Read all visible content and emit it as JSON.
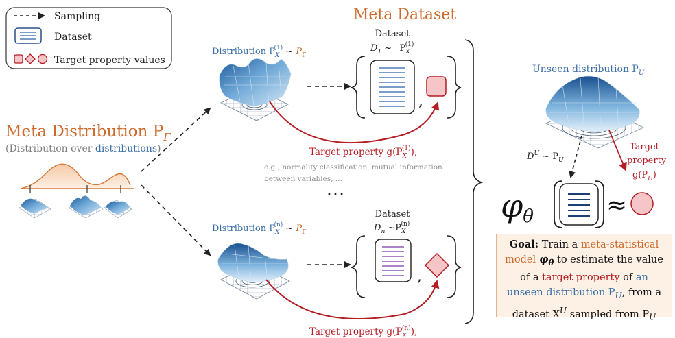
{
  "legend": {
    "sampling": "Sampling",
    "dataset": "Dataset",
    "target": "Target property values"
  },
  "meta_dataset_title": "Meta Dataset",
  "meta_distribution": {
    "title": "Meta Distribution P",
    "title_sub": "Γ",
    "caption_pre": "(Distribution over ",
    "caption_link": "distributions",
    "caption_post": ")"
  },
  "top": {
    "distribution_label": "Distribution P",
    "dist_sub": "X",
    "dist_sup": "(1)",
    "tilde": " ~ ",
    "prior": "P",
    "prior_sub": "Γ",
    "dataset_label": "Dataset",
    "d_label": "D",
    "d_sub": "1",
    "target_prefix": "Target property g(P",
    "target_sup": "(1)",
    "target_suffix": "),",
    "example_line1": "e.g., normality classification, mutual information",
    "example_line2": "between variables, ..."
  },
  "ellipsis": "• • •",
  "bottom": {
    "distribution_label": "Distribution P",
    "dist_sub": "X",
    "dist_sup": "(n)",
    "dataset_label": "Dataset",
    "d_label": "D",
    "d_sub": "n",
    "target_prefix": "Target property g(P",
    "target_sup": "(n)",
    "target_suffix": "),"
  },
  "unseen": {
    "label": "Unseen distribution P",
    "label_sub": "U",
    "du_label": "D",
    "du_sup": "U",
    "du_tilde": " ~ P",
    "du_sub": "U",
    "target_line1": "Target",
    "target_line2": "property",
    "target_line3": "g(P",
    "target_line3_sub": "U",
    "target_line3_end": ")"
  },
  "model": {
    "phi": "φ",
    "phi_sub": "θ",
    "approx": "≈"
  },
  "goal": {
    "bold": "Goal:",
    "t1": " Train a ",
    "model_words": "meta-statistical model",
    "phi": " φ",
    "phi_sub": "θ",
    "t2": " to estimate the value of a ",
    "target_words": "target property",
    "t3": " of ",
    "unseen_words": "an unseen distribution P",
    "unseen_sub": "U",
    "t4": ", from a dataset X",
    "x_sup": "U",
    "t5": " sampled from P",
    "p_sub": "U"
  },
  "colors": {
    "orange": "#cc6a2c",
    "red": "#b31d23",
    "blue": "#3a6ea8",
    "purple": "#8e58b4",
    "navy": "#1c3f78"
  }
}
